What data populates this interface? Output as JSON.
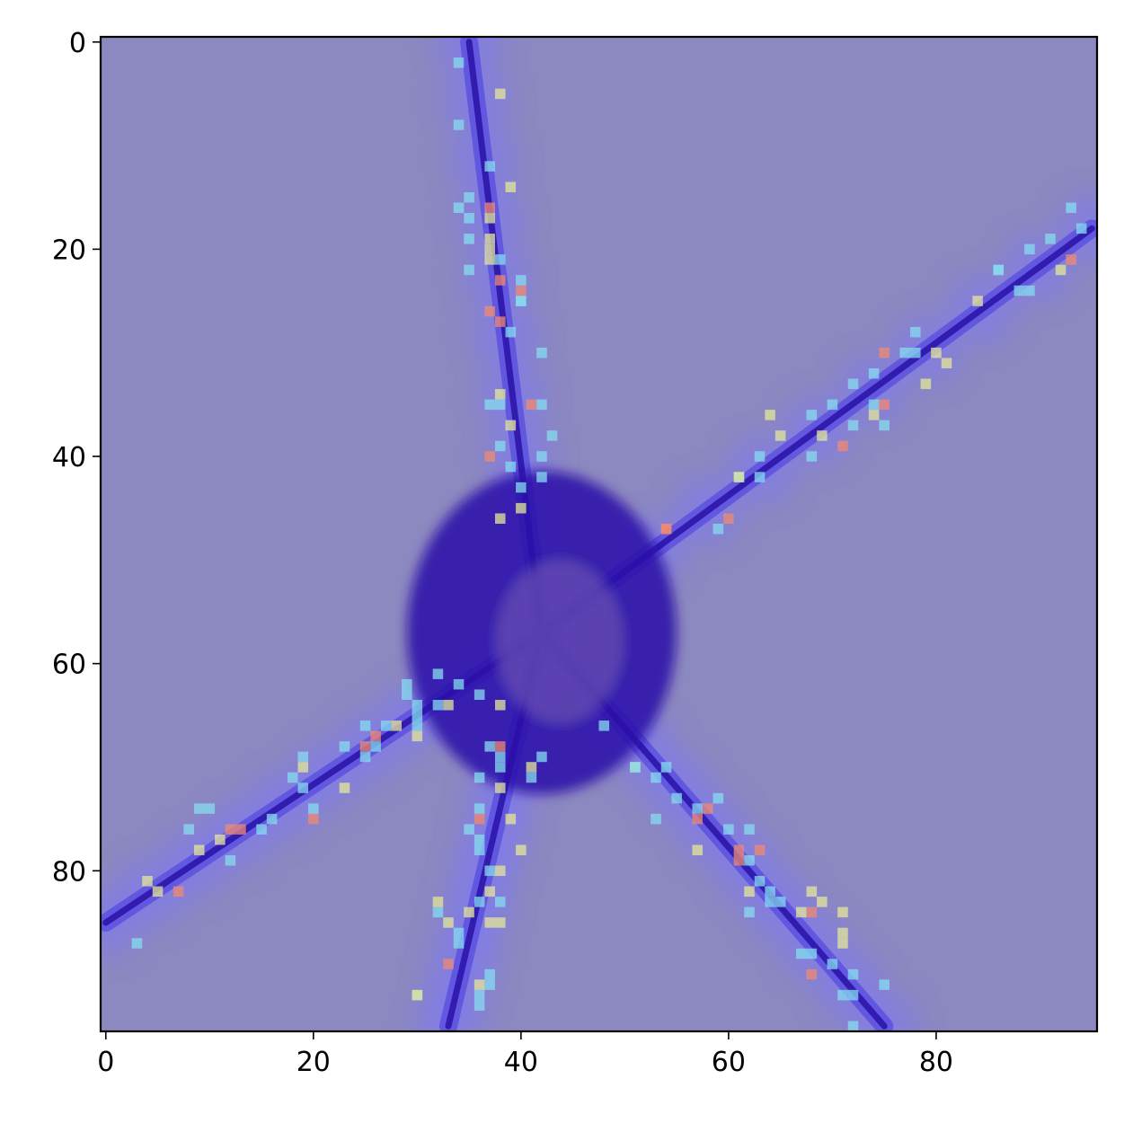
{
  "chart_data": {
    "type": "heatmap",
    "title": "",
    "xlabel": "",
    "ylabel": "",
    "xlim": [
      -0.5,
      95.5
    ],
    "ylim": [
      95.5,
      -0.5
    ],
    "x_ticks": [
      0,
      20,
      40,
      60,
      80
    ],
    "y_ticks": [
      0,
      20,
      40,
      60,
      80
    ],
    "x_tick_labels": [
      "0",
      "20",
      "40",
      "60",
      "80"
    ],
    "y_tick_labels": [
      "0",
      "20",
      "40",
      "60",
      "80"
    ],
    "grid": false,
    "legend": "none",
    "image_width": 96,
    "image_height": 96,
    "background_color": "#8c88c0",
    "colormap": [
      "#2a12a8",
      "#5a4ee0",
      "#7d78f2",
      "#86dcef",
      "#e4e79a",
      "#f08a72"
    ],
    "description_features": [
      {
        "kind": "cell-body",
        "x": 42,
        "y": 57
      },
      {
        "kind": "process",
        "from": [
          42,
          57
        ],
        "to": [
          35,
          0
        ]
      },
      {
        "kind": "process",
        "from": [
          42,
          57
        ],
        "to": [
          95,
          18
        ]
      },
      {
        "kind": "process",
        "from": [
          42,
          57
        ],
        "to": [
          0,
          85
        ]
      },
      {
        "kind": "process",
        "from": [
          42,
          57
        ],
        "to": [
          33,
          95
        ]
      },
      {
        "kind": "process",
        "from": [
          42,
          57
        ],
        "to": [
          75,
          95
        ]
      }
    ]
  }
}
